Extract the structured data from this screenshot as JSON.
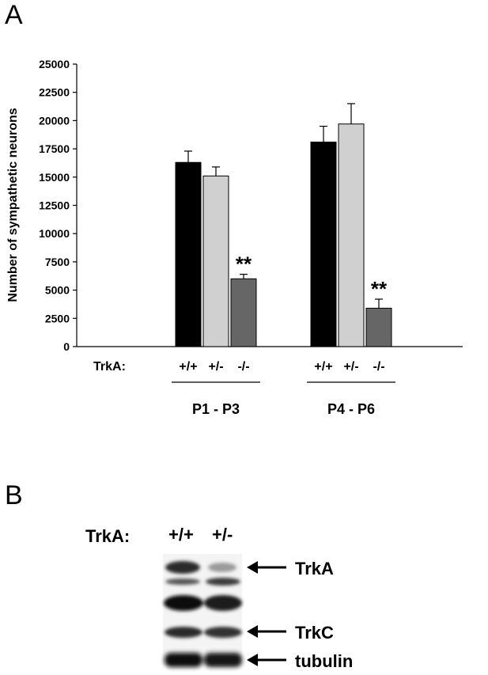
{
  "panel_a_label": "A",
  "panel_b_label": "B",
  "chart_data": {
    "type": "bar",
    "ylabel": "Number of sympathetic neurons",
    "ylim": [
      0,
      25000
    ],
    "yticks": [
      0,
      2500,
      5000,
      7500,
      10000,
      12500,
      15000,
      17500,
      20000,
      22500,
      25000
    ],
    "row_label": "TrkA:",
    "groups": [
      {
        "name": "P1 - P3",
        "bars": [
          {
            "genotype": "+/+",
            "value": 16300,
            "error": 1000,
            "color": "#000000",
            "annotation": ""
          },
          {
            "genotype": "+/-",
            "value": 15100,
            "error": 800,
            "color": "#d0d0d0",
            "annotation": ""
          },
          {
            "genotype": "-/-",
            "value": 6000,
            "error": 400,
            "color": "#666666",
            "annotation": "**"
          }
        ]
      },
      {
        "name": "P4 - P6",
        "bars": [
          {
            "genotype": "+/+",
            "value": 18100,
            "error": 1400,
            "color": "#000000",
            "annotation": ""
          },
          {
            "genotype": "+/-",
            "value": 19700,
            "error": 1800,
            "color": "#d0d0d0",
            "annotation": ""
          },
          {
            "genotype": "-/-",
            "value": 3400,
            "error": 800,
            "color": "#666666",
            "annotation": "**"
          }
        ]
      }
    ]
  },
  "blot": {
    "row_label": "TrkA:",
    "lanes": [
      "+/+",
      "+/-"
    ],
    "bands": [
      {
        "name": "TrkA",
        "arrow": true
      },
      {
        "name": "TrkC",
        "arrow": true
      },
      {
        "name": "tubulin",
        "arrow": true
      }
    ]
  }
}
